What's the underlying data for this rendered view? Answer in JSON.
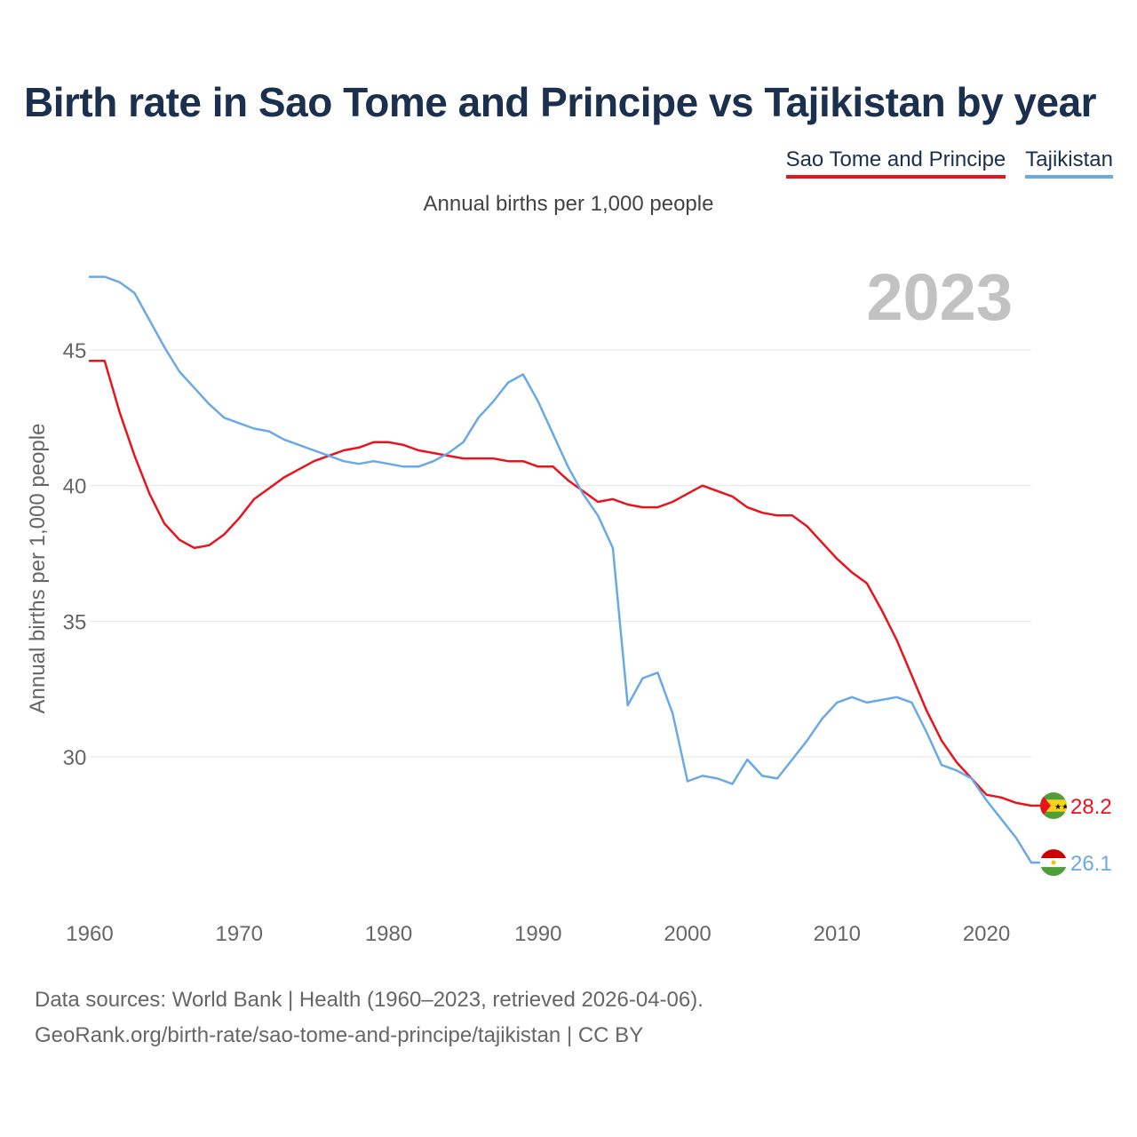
{
  "title": "Birth rate in Sao Tome and Principe vs Tajikistan by year",
  "subtitle": "Annual births per 1,000 people",
  "year_label": "2023",
  "legend": [
    {
      "name": "Sao Tome and Principe",
      "color": "#e8141b"
    },
    {
      "name": "Tajikistan",
      "color": "#6aa9e6"
    }
  ],
  "footer": {
    "line1": "Data sources: World Bank | Health (1960–2023, retrieved 2026-04-06).",
    "line2": "GeoRank.org/birth-rate/sao-tome-and-principe/tajikistan | CC BY"
  },
  "chart_data": {
    "type": "line",
    "title": "Birth rate in Sao Tome and Principe vs Tajikistan by year",
    "xlabel": "",
    "ylabel": "Annual births per 1,000 people",
    "xlim": [
      1960,
      2023
    ],
    "ylim": [
      25,
      48
    ],
    "x_ticks": [
      1960,
      1970,
      1980,
      1990,
      2000,
      2010,
      2020
    ],
    "y_ticks": [
      30,
      35,
      40,
      45
    ],
    "grid": true,
    "x": [
      1960,
      1961,
      1962,
      1963,
      1964,
      1965,
      1966,
      1967,
      1968,
      1969,
      1970,
      1971,
      1972,
      1973,
      1974,
      1975,
      1976,
      1977,
      1978,
      1979,
      1980,
      1981,
      1982,
      1983,
      1984,
      1985,
      1986,
      1987,
      1988,
      1989,
      1990,
      1991,
      1992,
      1993,
      1994,
      1995,
      1996,
      1997,
      1998,
      1999,
      2000,
      2001,
      2002,
      2003,
      2004,
      2005,
      2006,
      2007,
      2008,
      2009,
      2010,
      2011,
      2012,
      2013,
      2014,
      2015,
      2016,
      2017,
      2018,
      2019,
      2020,
      2021,
      2022,
      2023
    ],
    "series": [
      {
        "name": "Sao Tome and Principe",
        "color": "#e8141b",
        "end_label": "28.2",
        "values": [
          44.6,
          44.6,
          42.7,
          41.1,
          39.7,
          38.6,
          38.0,
          37.7,
          37.8,
          38.2,
          38.8,
          39.5,
          39.9,
          40.3,
          40.6,
          40.9,
          41.1,
          41.3,
          41.4,
          41.6,
          41.6,
          41.5,
          41.3,
          41.2,
          41.1,
          41.0,
          41.0,
          41.0,
          40.9,
          40.9,
          40.7,
          40.7,
          40.2,
          39.8,
          39.4,
          39.5,
          39.3,
          39.2,
          39.2,
          39.4,
          39.7,
          40.0,
          39.8,
          39.6,
          39.2,
          39.0,
          38.9,
          38.9,
          38.5,
          37.9,
          37.3,
          36.8,
          36.4,
          35.4,
          34.3,
          33.0,
          31.7,
          30.6,
          29.8,
          29.2,
          28.6,
          28.5,
          28.3,
          28.2
        ]
      },
      {
        "name": "Tajikistan",
        "color": "#6aa9e6",
        "end_label": "26.1",
        "values": [
          47.7,
          47.7,
          47.5,
          47.1,
          46.1,
          45.1,
          44.2,
          43.6,
          43.0,
          42.5,
          42.3,
          42.1,
          42.0,
          41.7,
          41.5,
          41.3,
          41.1,
          40.9,
          40.8,
          40.9,
          40.8,
          40.7,
          40.7,
          40.9,
          41.2,
          41.6,
          42.5,
          43.1,
          43.8,
          44.1,
          43.1,
          41.9,
          40.7,
          39.7,
          38.9,
          37.7,
          31.9,
          32.9,
          33.1,
          31.6,
          29.1,
          29.3,
          29.2,
          29.0,
          29.9,
          29.3,
          29.2,
          29.9,
          30.6,
          31.4,
          32.0,
          32.2,
          32.0,
          32.1,
          32.2,
          32.0,
          30.9,
          29.7,
          29.5,
          29.2,
          28.4,
          27.7,
          27.0,
          26.1
        ]
      }
    ]
  }
}
